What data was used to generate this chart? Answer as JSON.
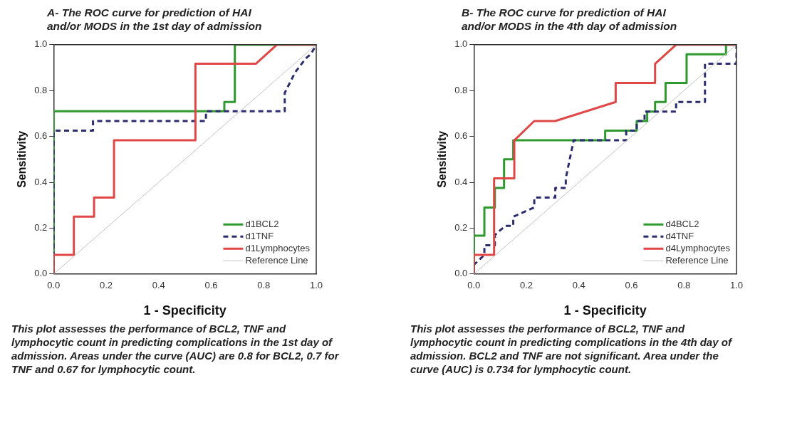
{
  "chart_data": [
    {
      "type": "line",
      "title": "A- The ROC curve for prediction of HAI and/or MODS in the 1st day of admission",
      "xlabel": "1 - Specificity",
      "ylabel": "Sensitivity",
      "xlim": [
        0,
        1
      ],
      "ylim": [
        0,
        1
      ],
      "xticks": [
        {
          "value": 0,
          "label": "0.0"
        },
        {
          "value": 0.2,
          "label": "0.2"
        },
        {
          "value": 0.4,
          "label": "0.4"
        },
        {
          "value": 0.6,
          "label": "0.6"
        },
        {
          "value": 0.8,
          "label": "0.8"
        },
        {
          "value": 1,
          "label": "1.0"
        }
      ],
      "yticks": [
        {
          "value": 0,
          "label": "0.0"
        },
        {
          "value": 0.2,
          "label": "0.2"
        },
        {
          "value": 0.4,
          "label": "0.4"
        },
        {
          "value": 0.6,
          "label": "0.6"
        },
        {
          "value": 0.8,
          "label": "0.8"
        },
        {
          "value": 1,
          "label": "1.0"
        }
      ],
      "grid": false,
      "legend": "bottom right",
      "marker": "none",
      "annotations": [
        "This plot assesses the performance of BCL2, TNF and lymphocytic count in predicting complications in the 1st day of admission. Areas under the curve (AUC) are 0.8 for BCL2, 0.7 for TNF and 0.67 for lymphocytic count."
      ],
      "series": [
        {
          "name": "d1BCL2",
          "color": "#2e9a2e",
          "line_style": "solid",
          "x": [
            0,
            0,
            0.65,
            0.65,
            0.69,
            0.69,
            1
          ],
          "values": [
            0,
            0.71,
            0.71,
            0.75,
            0.75,
            1,
            1
          ]
        },
        {
          "name": "d1TNF",
          "color": "#2b2d6e",
          "line_style": "dashed",
          "x": [
            0,
            0,
            0.15,
            0.15,
            0.58,
            0.58,
            0.88,
            0.88,
            0.92,
            0.96,
            0.98,
            1
          ],
          "values": [
            0,
            0.625,
            0.625,
            0.667,
            0.667,
            0.71,
            0.71,
            0.79,
            0.88,
            0.94,
            0.96,
            1
          ]
        },
        {
          "name": "d1Lymphocytes",
          "color": "#e04848",
          "line_style": "solid",
          "x": [
            0,
            0,
            0.077,
            0.077,
            0.154,
            0.154,
            0.23,
            0.23,
            0.54,
            0.54,
            0.77,
            0.85,
            1
          ],
          "values": [
            0,
            0.083,
            0.083,
            0.25,
            0.25,
            0.333,
            0.333,
            0.583,
            0.583,
            0.917,
            0.917,
            1,
            1
          ]
        },
        {
          "name": "Reference Line",
          "color": "#c4c4c4",
          "line_style": "solid",
          "x": [
            0,
            1
          ],
          "values": [
            0,
            1
          ]
        }
      ]
    },
    {
      "type": "line",
      "title": "B- The ROC curve for prediction of HAI and/or MODS in the 4th day of admission",
      "xlabel": "1 - Specificity",
      "ylabel": "Sensitivity",
      "xlim": [
        0,
        1
      ],
      "ylim": [
        0,
        1
      ],
      "xticks": [
        {
          "value": 0,
          "label": "0.0"
        },
        {
          "value": 0.2,
          "label": "0.2"
        },
        {
          "value": 0.4,
          "label": "0.4"
        },
        {
          "value": 0.6,
          "label": "0.6"
        },
        {
          "value": 0.8,
          "label": "0.8"
        },
        {
          "value": 1,
          "label": "1.0"
        }
      ],
      "yticks": [
        {
          "value": 0,
          "label": "0.0"
        },
        {
          "value": 0.2,
          "label": "0.2"
        },
        {
          "value": 0.4,
          "label": "0.4"
        },
        {
          "value": 0.6,
          "label": "0.6"
        },
        {
          "value": 0.8,
          "label": "0.8"
        },
        {
          "value": 1,
          "label": "1.0"
        }
      ],
      "grid": false,
      "legend": "bottom right",
      "marker": "none",
      "annotations": [
        "This plot assesses the performance of BCL2, TNF and lymphocytic count in predicting complications in the 4th day of admission. BCL2 and TNF are not significant. Area under the curve (AUC) is 0.734 for lymphocytic count."
      ],
      "series": [
        {
          "name": "d4BCL2",
          "color": "#2e9a2e",
          "line_style": "solid",
          "x": [
            0,
            0,
            0.04,
            0.04,
            0.08,
            0.08,
            0.115,
            0.115,
            0.15,
            0.15,
            0.5,
            0.5,
            0.62,
            0.62,
            0.66,
            0.66,
            0.69,
            0.69,
            0.73,
            0.73,
            0.81,
            0.81,
            0.96,
            0.96,
            1
          ],
          "values": [
            0,
            0.167,
            0.167,
            0.29,
            0.29,
            0.375,
            0.375,
            0.5,
            0.5,
            0.583,
            0.583,
            0.625,
            0.625,
            0.667,
            0.667,
            0.708,
            0.708,
            0.75,
            0.75,
            0.833,
            0.833,
            0.958,
            0.958,
            1,
            1
          ]
        },
        {
          "name": "d4TNF",
          "color": "#2b2d6e",
          "line_style": "dashed",
          "x": [
            0,
            0,
            0.04,
            0.04,
            0.08,
            0.08,
            0.12,
            0.15,
            0.15,
            0.23,
            0.23,
            0.31,
            0.31,
            0.35,
            0.35,
            0.38,
            0.58,
            0.58,
            0.62,
            0.62,
            0.65,
            0.65,
            0.77,
            0.77,
            0.88,
            0.88,
            1,
            1
          ],
          "values": [
            0,
            0.04,
            0.083,
            0.125,
            0.125,
            0.17,
            0.21,
            0.21,
            0.25,
            0.29,
            0.333,
            0.333,
            0.375,
            0.375,
            0.417,
            0.583,
            0.583,
            0.625,
            0.625,
            0.667,
            0.667,
            0.708,
            0.708,
            0.75,
            0.75,
            0.917,
            0.917,
            1
          ]
        },
        {
          "name": "d4Lymphocytes",
          "color": "#e04848",
          "line_style": "solid",
          "x": [
            0,
            0,
            0.077,
            0.077,
            0.154,
            0.154,
            0.23,
            0.31,
            0.54,
            0.54,
            0.69,
            0.69,
            0.77,
            1
          ],
          "values": [
            0,
            0.083,
            0.083,
            0.417,
            0.417,
            0.583,
            0.667,
            0.667,
            0.75,
            0.833,
            0.833,
            0.917,
            1,
            1
          ]
        },
        {
          "name": "Reference Line",
          "color": "#c4c4c4",
          "line_style": "solid",
          "x": [
            0,
            1
          ],
          "values": [
            0,
            1
          ]
        }
      ]
    }
  ]
}
